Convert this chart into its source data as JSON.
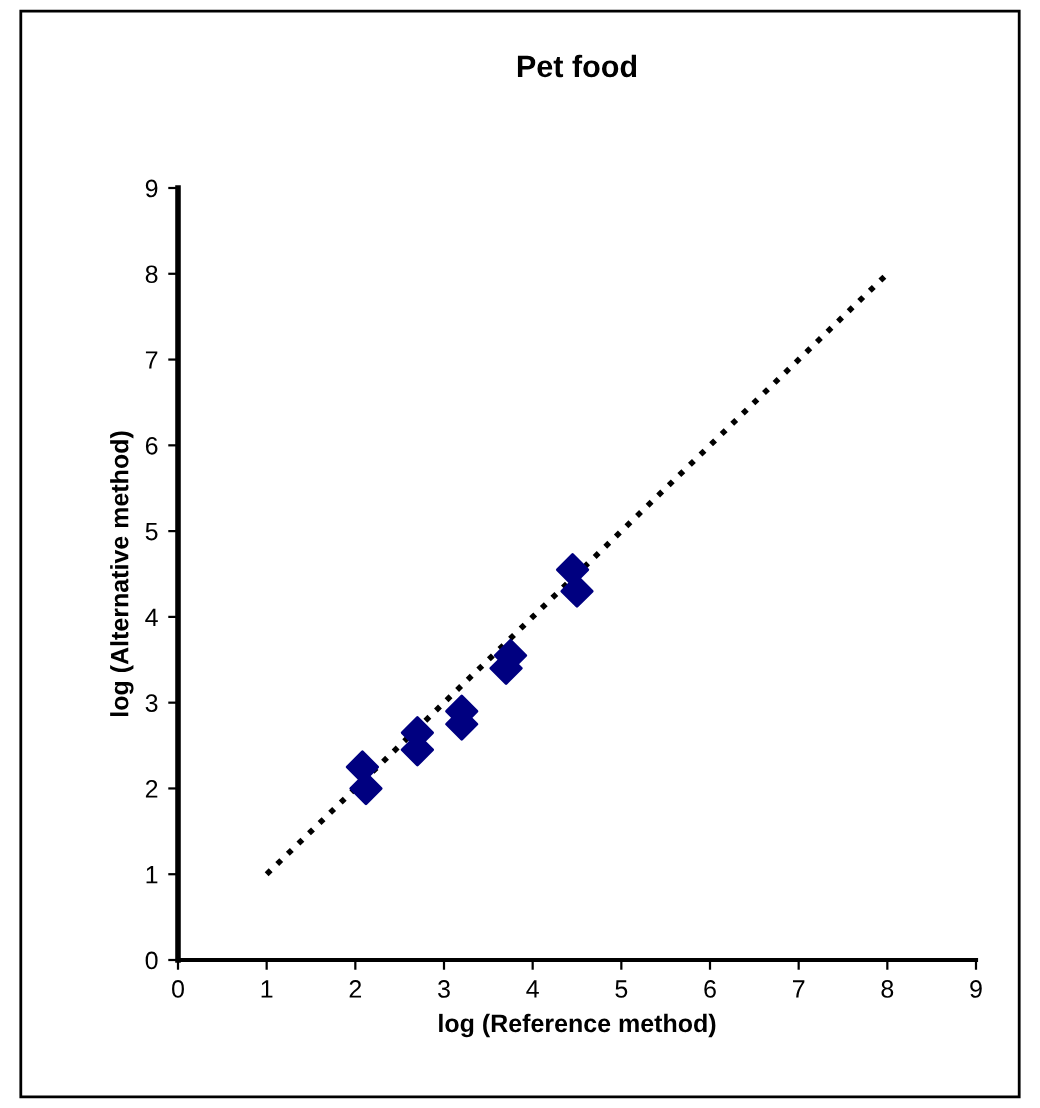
{
  "chart_data": {
    "type": "scatter",
    "title": "Pet food",
    "xlabel": "log (Reference method)",
    "ylabel": "log (Alternative method)",
    "xlim": [
      0,
      9
    ],
    "ylim": [
      0,
      9
    ],
    "xticks": [
      0,
      1,
      2,
      3,
      4,
      5,
      6,
      7,
      8,
      9
    ],
    "yticks": [
      0,
      1,
      2,
      3,
      4,
      5,
      6,
      7,
      8,
      9
    ],
    "grid": false,
    "legend": false,
    "series": [
      {
        "color": "#000080",
        "marker": "diamond",
        "x": [
          2.08,
          2.12,
          2.7,
          2.7,
          3.2,
          3.2,
          3.7,
          3.75,
          4.45,
          4.5
        ],
        "values": [
          2.25,
          2.0,
          2.65,
          2.45,
          2.9,
          2.75,
          3.4,
          3.55,
          4.55,
          4.3
        ]
      },
      {
        "type": "line",
        "color": "#000000",
        "marker": "none",
        "line_style": "dotted",
        "x": [
          1,
          8
        ],
        "values": [
          1,
          8
        ]
      }
    ]
  }
}
